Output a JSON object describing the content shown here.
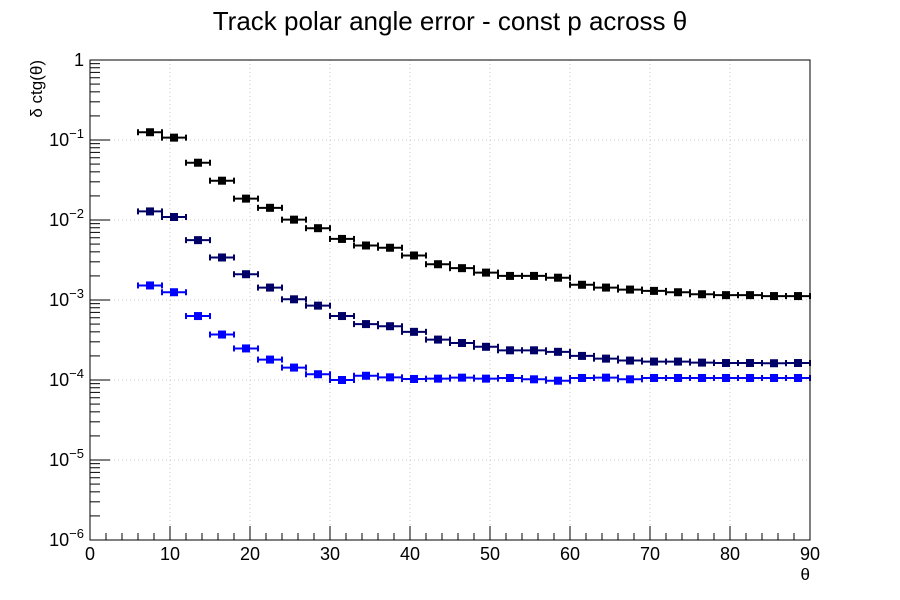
{
  "chart_data": {
    "type": "scatter",
    "title": "Track polar angle error - const p across θ",
    "xlabel": "θ",
    "ylabel": "δ ctg(θ)",
    "xlim": [
      0,
      90
    ],
    "ylim": [
      1e-06,
      1
    ],
    "y_scale": "log",
    "grid": true,
    "x_ticks": [
      "0",
      "10",
      "20",
      "30",
      "40",
      "50",
      "60",
      "70",
      "80",
      "90"
    ],
    "y_ticks": [
      {
        "base": "10",
        "exp": "−6"
      },
      {
        "base": "10",
        "exp": "−5"
      },
      {
        "base": "10",
        "exp": "−4"
      },
      {
        "base": "10",
        "exp": "−3"
      },
      {
        "base": "10",
        "exp": "−2"
      },
      {
        "base": "10",
        "exp": "−1"
      },
      {
        "base": "1",
        "exp": ""
      }
    ],
    "x": [
      7.5,
      10.5,
      13.5,
      16.5,
      19.5,
      22.5,
      25.5,
      28.5,
      31.5,
      34.5,
      37.5,
      40.5,
      43.5,
      46.5,
      49.5,
      52.5,
      55.5,
      58.5,
      61.5,
      64.5,
      67.5,
      70.5,
      73.5,
      76.5,
      79.5,
      82.5,
      85.5,
      88.5
    ],
    "x_error": 1.5,
    "series": [
      {
        "color": "#000000",
        "values": [
          0.125,
          0.107,
          0.052,
          0.031,
          0.0185,
          0.0142,
          0.0101,
          0.0079,
          0.0058,
          0.0048,
          0.0045,
          0.0036,
          0.0028,
          0.0025,
          0.0022,
          0.002,
          0.002,
          0.0019,
          0.00155,
          0.00143,
          0.00135,
          0.0013,
          0.00125,
          0.00118,
          0.00115,
          0.00115,
          0.00112,
          0.00112
        ]
      },
      {
        "color": "#000066",
        "values": [
          0.0128,
          0.0109,
          0.0056,
          0.0034,
          0.0021,
          0.00143,
          0.00102,
          0.00085,
          0.00063,
          0.0005,
          0.00047,
          0.0004,
          0.00032,
          0.00029,
          0.00026,
          0.000235,
          0.000235,
          0.000225,
          0.0002,
          0.000185,
          0.000175,
          0.00017,
          0.00017,
          0.000165,
          0.000163,
          0.000163,
          0.000162,
          0.000163
        ]
      },
      {
        "color": "#0000ff",
        "values": [
          0.00152,
          0.00125,
          0.00063,
          0.00037,
          0.000248,
          0.00018,
          0.000143,
          0.000118,
          0.0001,
          0.000113,
          0.000108,
          0.000103,
          0.000104,
          0.000107,
          0.000104,
          0.000106,
          0.000102,
          9.8e-05,
          0.000106,
          0.000107,
          0.000102,
          0.000106,
          0.000106,
          0.000106,
          0.000106,
          0.000106,
          0.000106,
          0.000106
        ]
      }
    ]
  }
}
